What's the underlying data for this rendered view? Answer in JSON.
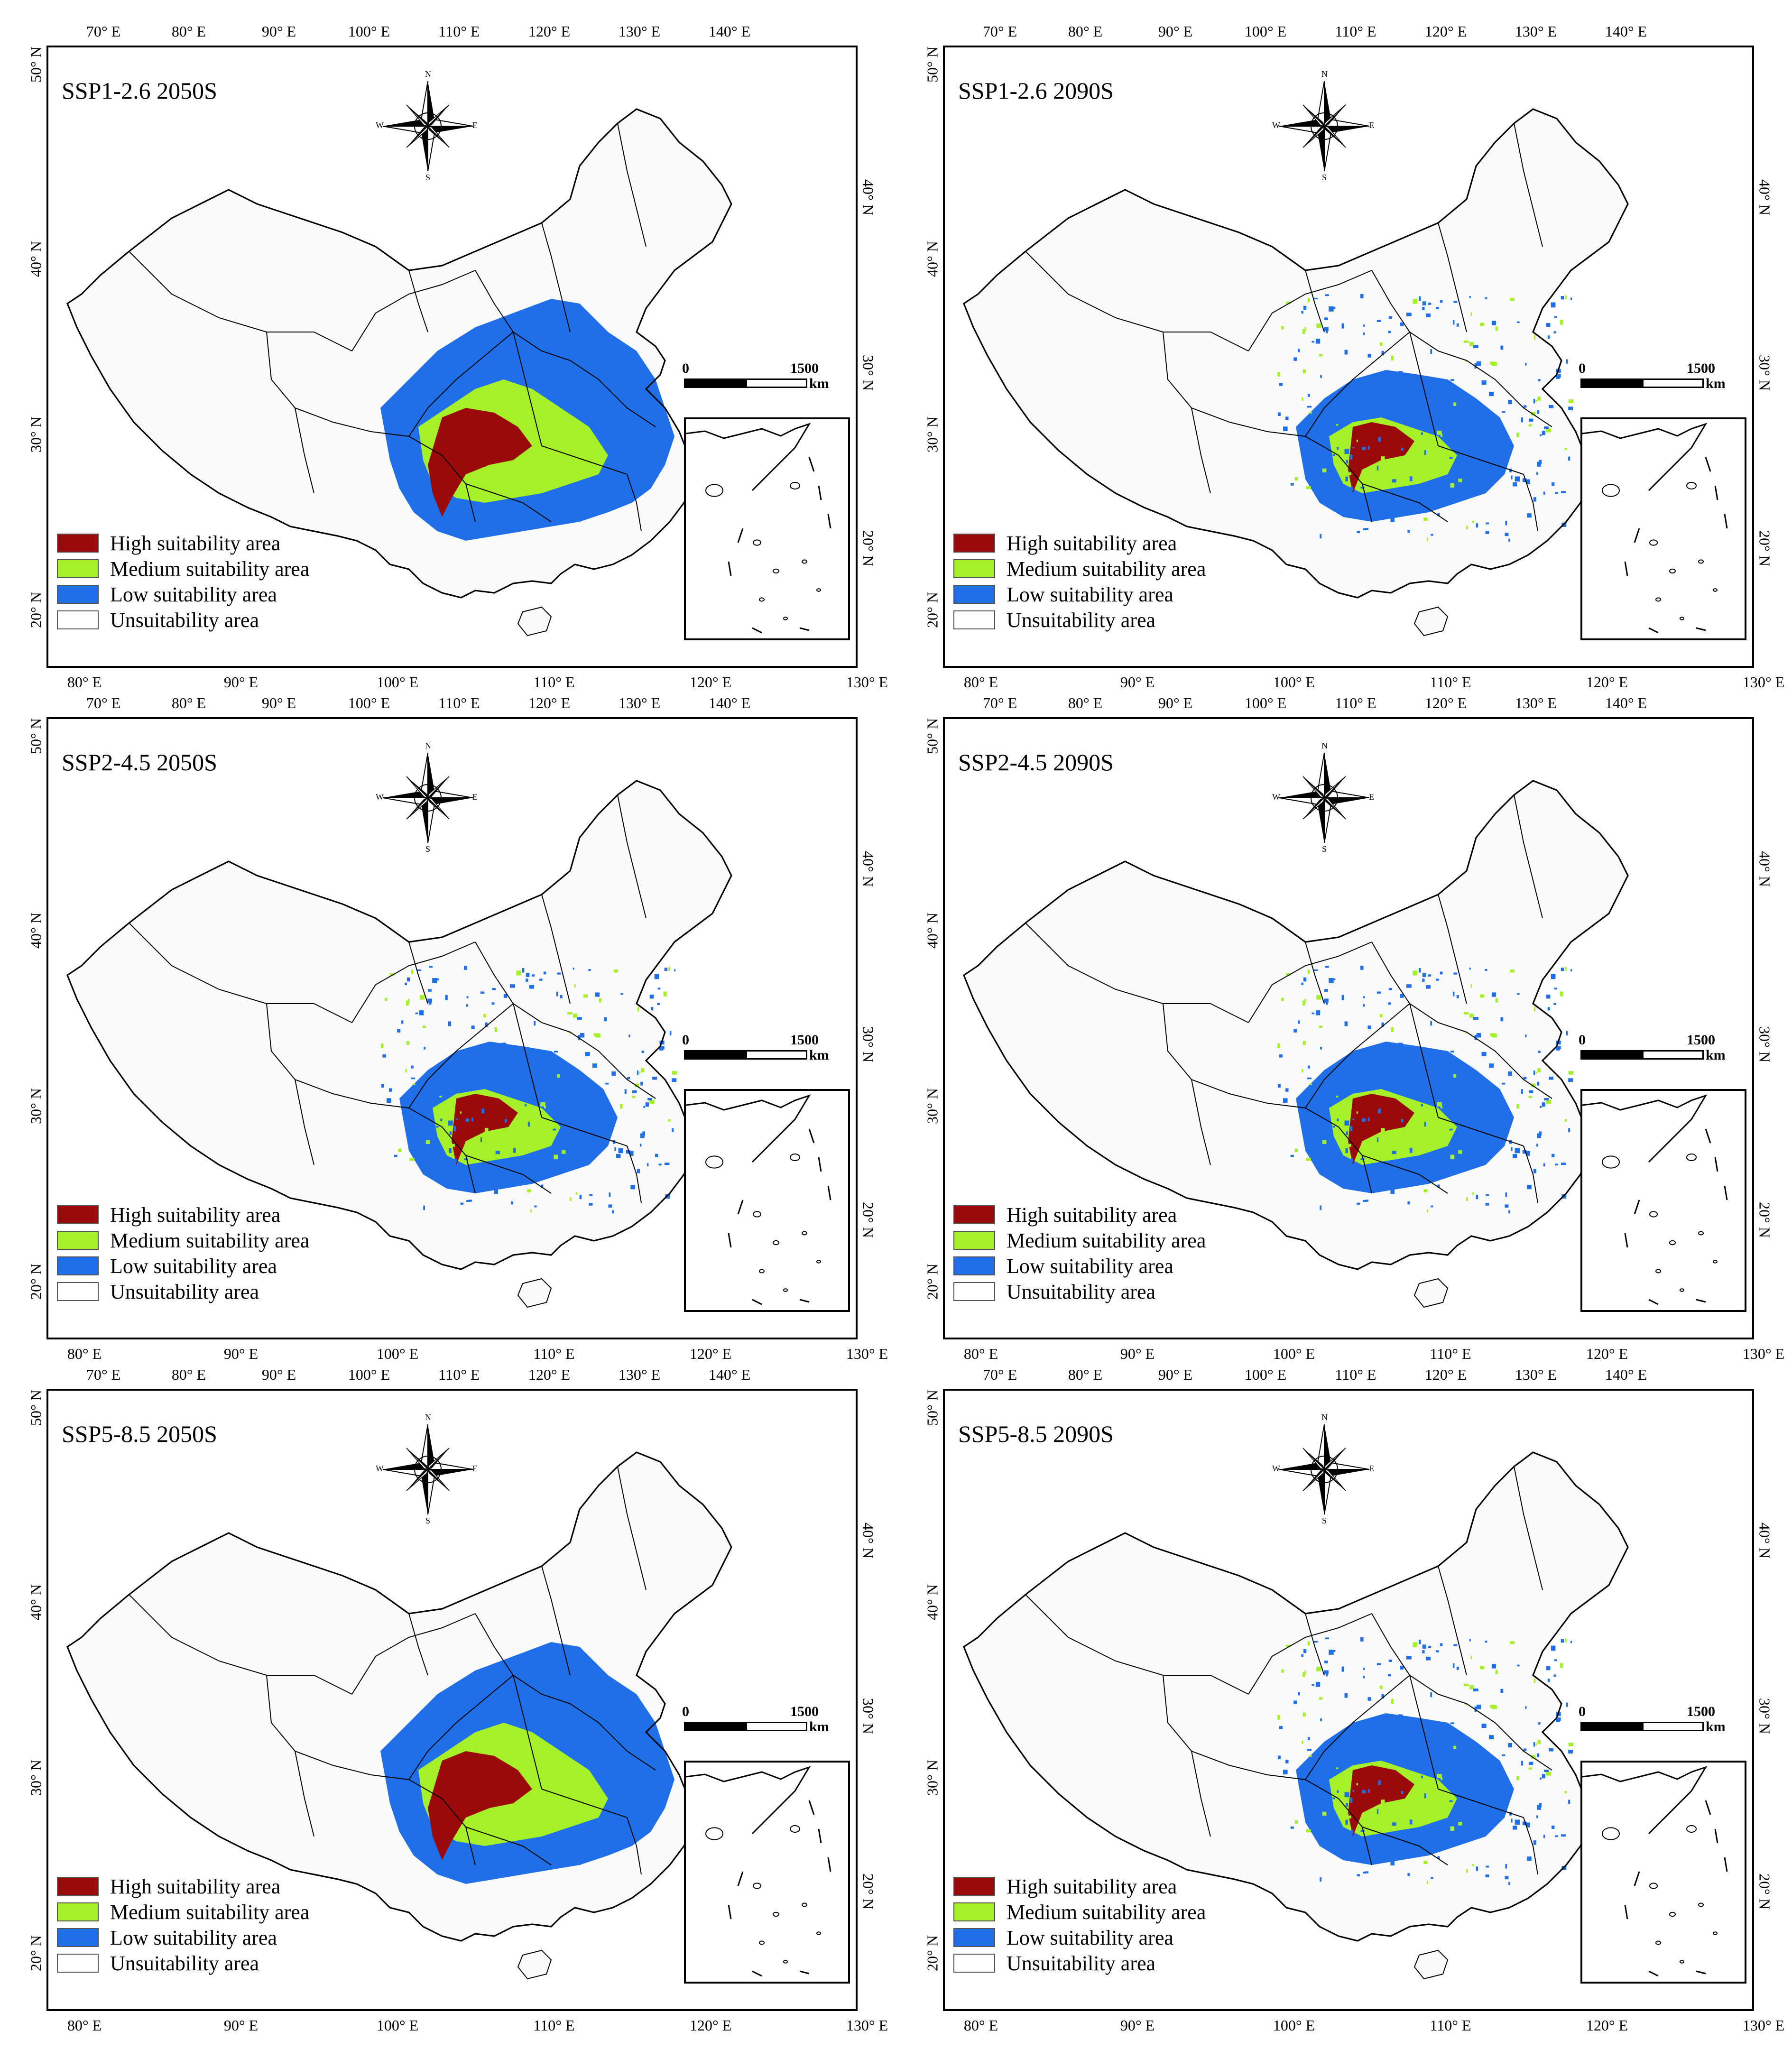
{
  "colors": {
    "high": "#9b0a0a",
    "medium": "#a6f02a",
    "low": "#1f6fe8",
    "unsuitable": "#ffffff",
    "boundary": "#000000"
  },
  "top_ticks": [
    "70° E",
    "80° E",
    "90° E",
    "100° E",
    "110° E",
    "120° E",
    "130° E",
    "140° E"
  ],
  "bottom_ticks": [
    "80° E",
    "90° E",
    "100° E",
    "110° E",
    "120° E",
    "130° E"
  ],
  "left_ticks": [
    "50° N",
    "40° N",
    "30° N",
    "20° N"
  ],
  "right_ticks": [
    "40° N",
    "30° N",
    "20° N"
  ],
  "legend": [
    {
      "label": "High suitability area",
      "key": "high"
    },
    {
      "label": "Medium suitability area",
      "key": "medium"
    },
    {
      "label": "Low suitability area",
      "key": "low"
    },
    {
      "label": "Unsuitability area",
      "key": "unsuitable"
    }
  ],
  "scale_bar": {
    "start": "0",
    "end": "1500",
    "unit": "km"
  },
  "compass": {
    "n": "N",
    "s": "S",
    "e": "E",
    "w": "W"
  },
  "panels": [
    {
      "title": "SSP1-2.6 2050S",
      "extent": "wide"
    },
    {
      "title": "SSP1-2.6 2090S",
      "extent": "fragmented"
    },
    {
      "title": "SSP2-4.5 2050S",
      "extent": "fragmented"
    },
    {
      "title": "SSP2-4.5 2090S",
      "extent": "fragmented"
    },
    {
      "title": "SSP5-8.5 2050S",
      "extent": "wide"
    },
    {
      "title": "SSP5-8.5 2090S",
      "extent": "fragmented"
    }
  ]
}
